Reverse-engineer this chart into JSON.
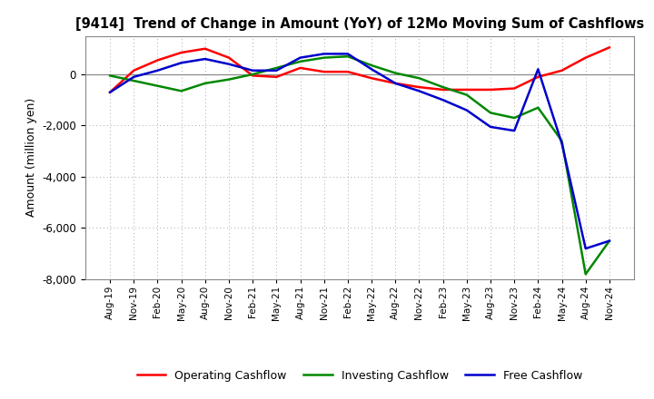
{
  "title": "[9414]  Trend of Change in Amount (YoY) of 12Mo Moving Sum of Cashflows",
  "ylabel": "Amount (million yen)",
  "ylim": [
    -8000,
    1500
  ],
  "yticks": [
    -8000,
    -6000,
    -4000,
    -2000,
    0
  ],
  "background_color": "#ffffff",
  "labels": [
    "Aug-19",
    "Nov-19",
    "Feb-20",
    "May-20",
    "Aug-20",
    "Nov-20",
    "Feb-21",
    "May-21",
    "Aug-21",
    "Nov-21",
    "Feb-22",
    "May-22",
    "Aug-22",
    "Nov-22",
    "Feb-23",
    "May-23",
    "Aug-23",
    "Nov-23",
    "Feb-24",
    "May-24",
    "Aug-24",
    "Nov-24"
  ],
  "operating_cashflow": [
    -700,
    150,
    550,
    850,
    1000,
    650,
    -50,
    -100,
    250,
    100,
    100,
    -150,
    -350,
    -500,
    -600,
    -600,
    -600,
    -550,
    -100,
    150,
    650,
    1050
  ],
  "investing_cashflow": [
    -50,
    -250,
    -450,
    -650,
    -350,
    -200,
    0,
    250,
    500,
    650,
    700,
    350,
    50,
    -150,
    -500,
    -800,
    -1500,
    -1700,
    -1300,
    -2600,
    -7800,
    -6500
  ],
  "free_cashflow": [
    -700,
    -100,
    150,
    450,
    600,
    400,
    150,
    150,
    650,
    800,
    800,
    200,
    -350,
    -650,
    -1000,
    -1400,
    -2050,
    -2200,
    200,
    -2700,
    -6800,
    -6500
  ],
  "operating_color": "#ff0000",
  "investing_color": "#008800",
  "free_color": "#0000cc",
  "legend_labels": [
    "Operating Cashflow",
    "Investing Cashflow",
    "Free Cashflow"
  ]
}
